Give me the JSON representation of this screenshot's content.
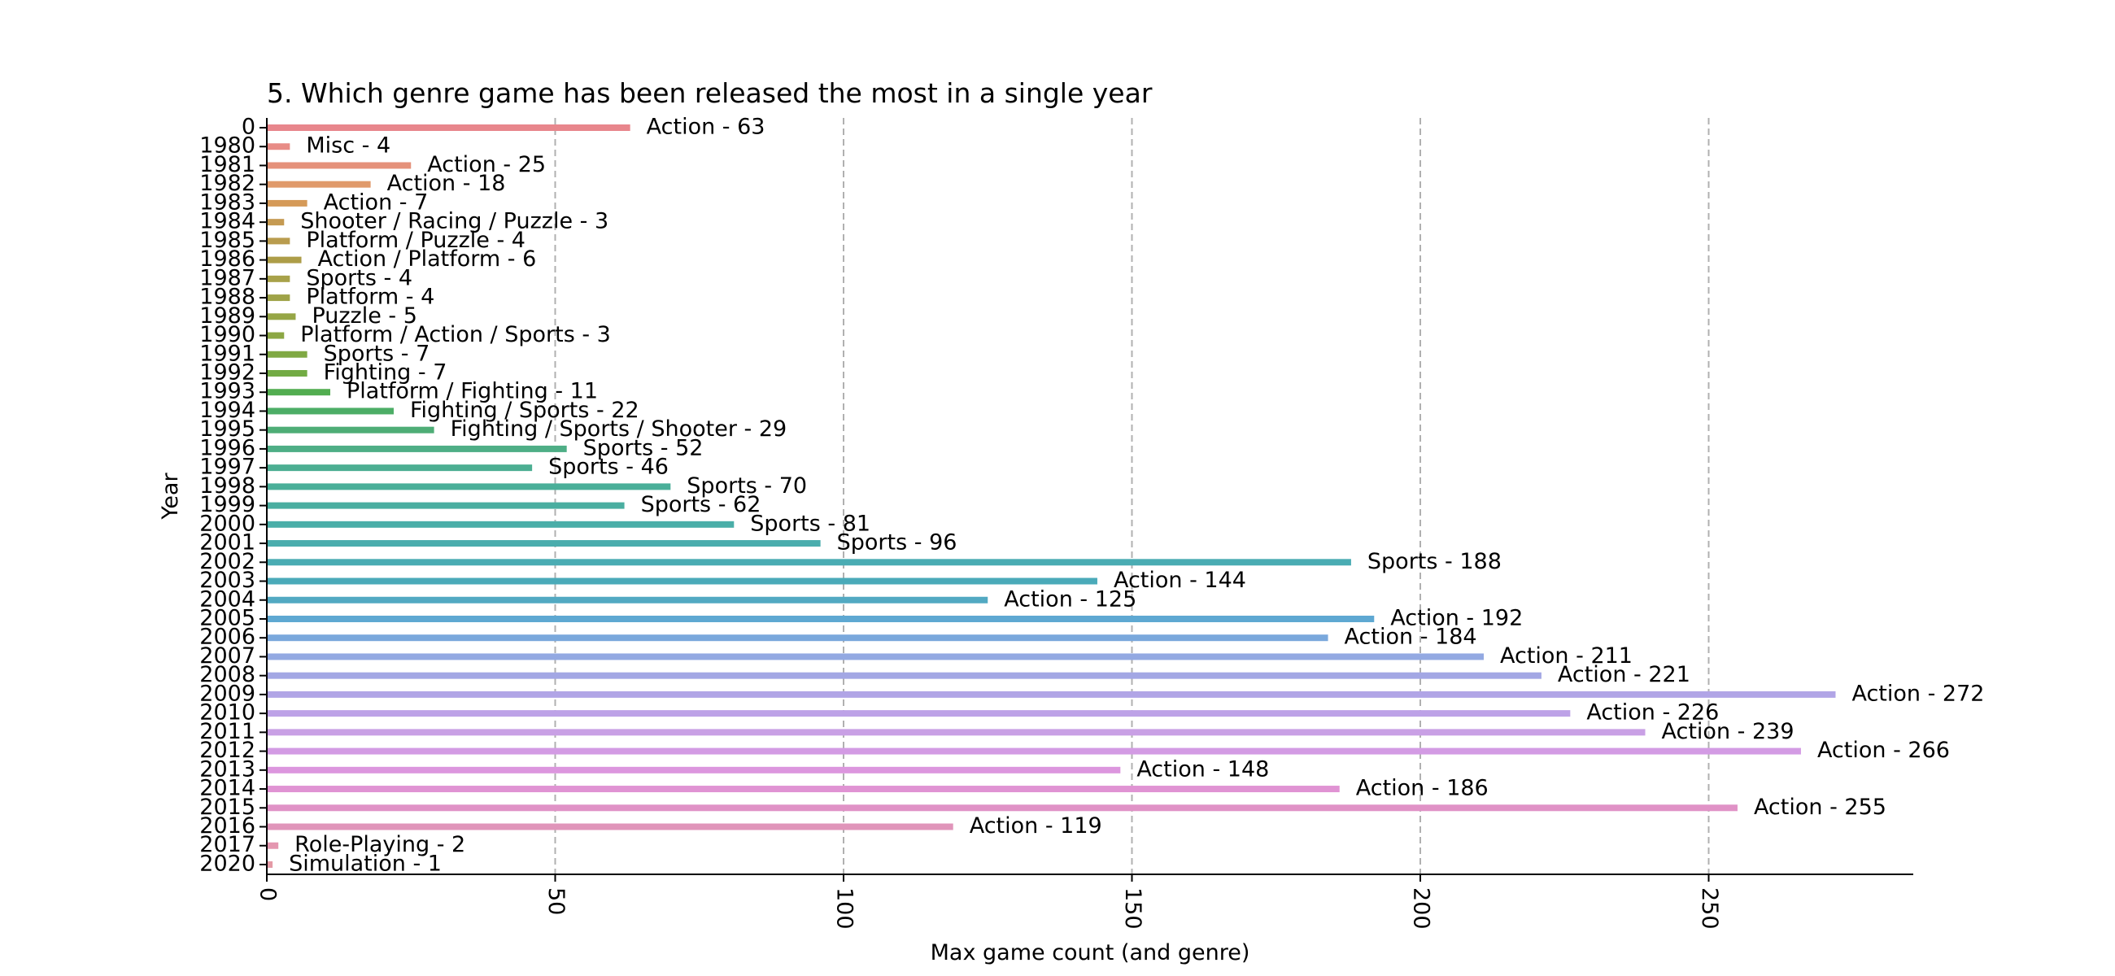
{
  "chart_data": {
    "type": "bar",
    "orientation": "horizontal",
    "title": "5. Which genre game has been released the most in a single year",
    "xlabel": "Max game count (and genre)",
    "ylabel": "Year",
    "xlim": [
      0,
      285
    ],
    "xticks": [
      0,
      50,
      100,
      150,
      200,
      250
    ],
    "grid": "x-dashed",
    "categories": [
      "0",
      "1980",
      "1981",
      "1982",
      "1983",
      "1984",
      "1985",
      "1986",
      "1987",
      "1988",
      "1989",
      "1990",
      "1991",
      "1992",
      "1993",
      "1994",
      "1995",
      "1996",
      "1997",
      "1998",
      "1999",
      "2000",
      "2001",
      "2002",
      "2003",
      "2004",
      "2005",
      "2006",
      "2007",
      "2008",
      "2009",
      "2010",
      "2011",
      "2012",
      "2013",
      "2014",
      "2015",
      "2016",
      "2017",
      "2020"
    ],
    "values": [
      63,
      4,
      25,
      18,
      7,
      3,
      4,
      6,
      4,
      4,
      5,
      3,
      7,
      7,
      11,
      22,
      29,
      52,
      46,
      70,
      62,
      81,
      96,
      188,
      144,
      125,
      192,
      184,
      211,
      221,
      272,
      226,
      239,
      266,
      148,
      186,
      255,
      119,
      2,
      1
    ],
    "labels": [
      "Action - 63",
      "Misc - 4",
      "Action - 25",
      "Action - 18",
      "Action - 7",
      "Shooter / Racing / Puzzle - 3",
      "Platform / Puzzle - 4",
      "Action / Platform - 6",
      "Sports - 4",
      "Platform - 4",
      "Puzzle - 5",
      "Platform / Action / Sports - 3",
      "Sports - 7",
      "Fighting - 7",
      "Platform / Fighting - 11",
      "Fighting / Sports - 22",
      "Fighting / Sports / Shooter - 29",
      "Sports - 52",
      "Sports - 46",
      "Sports - 70",
      "Sports - 62",
      "Sports - 81",
      "Sports - 96",
      "Sports - 188",
      "Action - 144",
      "Action - 125",
      "Action - 192",
      "Action - 184",
      "Action - 211",
      "Action - 221",
      "Action - 272",
      "Action - 226",
      "Action - 239",
      "Action - 266",
      "Action - 148",
      "Action - 186",
      "Action - 255",
      "Action - 119",
      "Role-Playing - 2",
      "Simulation - 1"
    ],
    "colors": [
      "#e8868c",
      "#e88c86",
      "#e5917a",
      "#e09a6b",
      "#d59a58",
      "#c59a52",
      "#b99c4e",
      "#ad9d48",
      "#a8a24a",
      "#9fa348",
      "#96a646",
      "#8ca744",
      "#80a944",
      "#72ab44",
      "#52ad50",
      "#4cad66",
      "#4ead76",
      "#4eae86",
      "#4cae92",
      "#4aaf99",
      "#4aaea0",
      "#4aaea8",
      "#4aadad",
      "#4aacb3",
      "#4aaab9",
      "#52a9c2",
      "#5ea8d2",
      "#7aa8dc",
      "#93a9e2",
      "#a3a7e4",
      "#b1a5e6",
      "#bda2e7",
      "#c9a0e5",
      "#d39be4",
      "#dc96de",
      "#e093d3",
      "#e092c6",
      "#e095ba",
      "#e497b0",
      "#e49aa6"
    ]
  }
}
